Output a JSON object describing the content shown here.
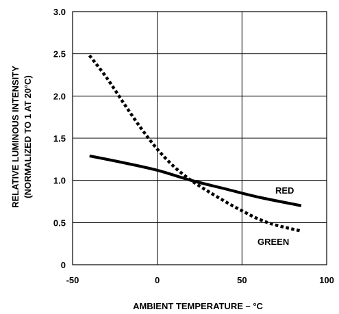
{
  "chart_data": {
    "type": "line",
    "xlabel": "AMBIENT TEMPERATURE – °C",
    "ylabel_line1": "RELATIVE LUMINOUS INTENSITY",
    "ylabel_line2": "(NORMALIZED TO 1 AT 20°C)",
    "xlim": [
      -50,
      100
    ],
    "ylim": [
      0,
      3.0
    ],
    "x_ticks": [
      -50,
      0,
      50,
      100
    ],
    "x_tick_labels": [
      "-50",
      "0",
      "50",
      "100"
    ],
    "y_ticks": [
      0,
      0.5,
      1.0,
      1.5,
      2.0,
      2.5,
      3.0
    ],
    "y_tick_labels": [
      "0",
      "0.5",
      "1.0",
      "1.5",
      "2.0",
      "2.5",
      "3.0"
    ],
    "grid": true,
    "series": [
      {
        "name": "RED",
        "style": "solid",
        "color": "#000000",
        "x": [
          -40,
          -20,
          0,
          20,
          40,
          60,
          85
        ],
        "y": [
          1.29,
          1.21,
          1.12,
          1.0,
          0.9,
          0.8,
          0.7
        ]
      },
      {
        "name": "GREEN",
        "style": "dotted",
        "color": "#000000",
        "x": [
          -40,
          -30,
          -20,
          -10,
          0,
          10,
          20,
          30,
          40,
          50,
          60,
          70,
          85
        ],
        "y": [
          2.48,
          2.22,
          1.92,
          1.63,
          1.37,
          1.16,
          1.0,
          0.87,
          0.75,
          0.64,
          0.54,
          0.47,
          0.4
        ]
      }
    ]
  }
}
